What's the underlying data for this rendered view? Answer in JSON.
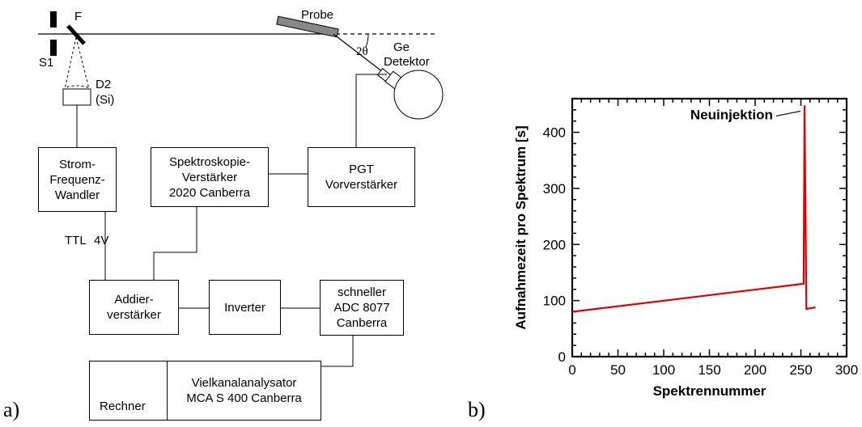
{
  "panel_a": {
    "label": "a)",
    "beam": {
      "s1": "S1",
      "f": "F",
      "probe": "Probe",
      "two_theta": "2θ",
      "ge_detector": [
        "Ge",
        "Detektor"
      ],
      "d2": [
        "D2",
        "(Si)"
      ]
    },
    "boxes": {
      "strom": [
        "Strom-",
        "Frequenz-",
        "Wandler"
      ],
      "spektro": [
        "Spektroskopie-",
        "Verstärker",
        "2020 Canberra"
      ],
      "pgt": [
        "PGT",
        "Vorverstärker"
      ],
      "addier": [
        "Addier-",
        "verstärker"
      ],
      "inverter": [
        "Inverter"
      ],
      "adc": [
        "schneller",
        "ADC 8077",
        "Canberra"
      ],
      "rechner": "Rechner",
      "mca": [
        "Vielkanalanalysator",
        "MCA S 400 Canberra"
      ]
    },
    "ttl": "TTL",
    "fourv": "4V"
  },
  "panel_b": {
    "label": "b)"
  },
  "chart_data": {
    "type": "line",
    "xlabel": "Spektrennummer",
    "ylabel": "Aufnahmezeit pro Spektrum [s]",
    "xlim": [
      0,
      300
    ],
    "ylim": [
      0,
      460
    ],
    "xticks": [
      0,
      50,
      100,
      150,
      200,
      250,
      300
    ],
    "yticks": [
      0,
      100,
      200,
      300,
      400
    ],
    "series_color": "#e00000",
    "points": [
      [
        0,
        80
      ],
      [
        253,
        130
      ],
      [
        254,
        448
      ],
      [
        256,
        85
      ],
      [
        266,
        88
      ]
    ],
    "annotation": {
      "text": "Neuinjektion",
      "x": 253,
      "y": 432
    }
  }
}
